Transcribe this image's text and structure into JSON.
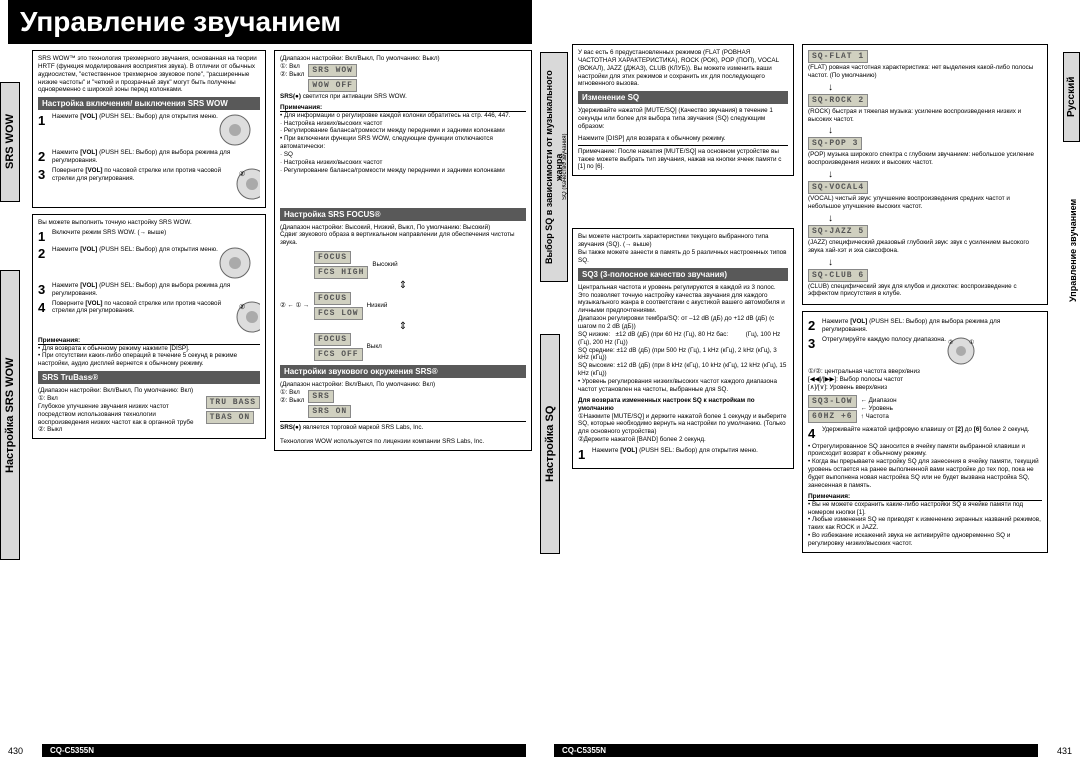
{
  "title": "Управление звучанием",
  "model": "CQ-C5355N",
  "page_left": "430",
  "page_right": "431",
  "lang_tab": "Русский",
  "side_tab_right": "Управление звучанием",
  "left": {
    "vtab1": "SRS WOW",
    "vtab2": "Настройка SRS WOW",
    "intro": "SRS WOW™ это технология трехмерного звучания, основанная на теории HRTF (функция моделирования восприятия звука). В отличии от обычных аудиосистем, \"естественное трехмерное звуковое поле\", \"расширенные низкие частоты\" и \"четкий и прозрачный звук\" могут быть получены одновременно с широкой зоны перед колонками.",
    "hdr1": "Настройка включения/ выключения SRS WOW",
    "s1_1a": "Нажмите ",
    "s1_1b": "[VOL]",
    "s1_1c": " (PUSH SEL",
    "s1_1d": ": Выбор) для открытия меню.",
    "s1_2a": "Нажмите ",
    "s1_2b": "[VOL]",
    "s1_2c": " (PUSH SEL: Выбор) для выбора режима для регулирования.",
    "s1_3a": "Поверните ",
    "s1_3b": "[VOL]",
    "s1_3c": " по часовой стрелке или против часовой стрелки для регулирования.",
    "box2_intro": "Вы можете выполнить точную настройку SRS WOW.",
    "s2_1": "Включите режим SRS WOW. (→ выше)",
    "s2_2a": "Нажмите ",
    "s2_2b": "[VOL]",
    "s2_2c": " (PUSH SEL: Выбор) для открытия меню.",
    "s2_3a": "Нажмите ",
    "s2_3b": "[VOL]",
    "s2_3c": " (PUSH SEL: Выбор) для выбора режима для регулирования.",
    "s2_4a": "Поверните ",
    "s2_4b": "[VOL]",
    "s2_4c": " по часовой стрелке или против часовой стрелки для регулирования.",
    "note_hdr": "Примечания:",
    "note1": "• Для возврата к обычному режиму нажмите [DISP].",
    "note2": "• При отсутствии каких-либо операций в течение 5 секунд в режиме настройки, аудио дисплей вернется к обычному режиму.",
    "hdr_tb": "SRS TruBass®",
    "tb_range": "(Диапазон настройки: Вкл/Выкл, По умолчанию: Вкл)",
    "tb_on": "①: Вкл",
    "tb_on_desc": "Глубокое улучшение звучания низких частот посредством использования технологии воспроизведения низких частот как в органной трубе",
    "tb_off": "②: Выкл",
    "lcd_tb1": "TRU BASS",
    "lcd_tb2": "TBAS  ON",
    "mid_range": "(Диапазон настройки: Вкл/Выкл, По умолчанию: Выкл)",
    "mid_on": "①: Вкл",
    "mid_off": "②: Выкл",
    "lcd_wow1": "SRS WOW",
    "lcd_wow2": "WOW  OFF",
    "mid_note_led": " светится при активации SRS WOW.",
    "mid_notes1": "• Для информации о регулировке каждой колонки обратитесь на стр. 446, 447.",
    "mid_notes2": "  · Настройка низких/высоких частот",
    "mid_notes3": "  · Регулирование баланса/громкости между передними и задними колонками",
    "mid_notes4": "• При включении функции SRS WOW, следующие функции отключаются автоматически:",
    "mid_notes5": "  · SQ",
    "mid_notes6": "  · Настройка низких/высоких частот",
    "mid_notes7": "  · Регулирование баланса/громкости между передними и задними колонками",
    "hdr_focus": "Настройка SRS FOCUS®",
    "focus_range": "(Диапазон настройки: Высокий, Низкий, Выкл, По умолчанию: Высокий)",
    "focus_desc": "Сдвиг звукового образа в вертикальном направлении для обеспечения чистоты звука.",
    "lcd_f1": "FOCUS",
    "lcd_f1b": "FCS HIGH",
    "f1_lbl": "Высокий",
    "lcd_f2": "FOCUS",
    "lcd_f2b": "FCS  LOW",
    "f2_lbl": "Низкий",
    "lcd_f3": "FOCUS",
    "lcd_f3b": "FCS  OFF",
    "f3_lbl": "Выкл",
    "hdr_srs": "Настройки звукового окружения SRS®",
    "srs_range": "(Диапазон настройки: Вкл/Выкл, По умолчанию: Вкл)",
    "srs_on": "①: Вкл",
    "srs_off": "②: Выкл",
    "lcd_s1": "SRS",
    "lcd_s2": "SRS   ON",
    "trademark1": " является торговой маркой SRS Labs, Inc.",
    "trademark2": "Технология WOW используется по лицензии компании SRS Labs, Inc."
  },
  "right": {
    "vtab1": "Выбор SQ в зависимости от музыкального жанра",
    "vtab1_sub": "SQ (Качество звучания)",
    "vtab2": "Настройка SQ",
    "intro": "У вас есть 6 предустановленных режимов (FLAT (РОВНАЯ ЧАСТОТНАЯ ХАРАКТЕРИСТИКА), ROCK (РОК), POP (ПОП), VOCAL (ВОКАЛ), JAZZ (ДЖАЗ), CLUB (КЛУБ)). Вы можете изменить ваши настройки для этих режимов и сохранить их для последующего мгновенного вызова.",
    "hdr1": "Изменение SQ",
    "s1": "Удерживайте нажатой [MUTE/SQ] (Качество звучания) в течение 1 секунды или более для выбора типа звучания (SQ) следующим образом:",
    "s1_disp": "Нажмите [DISP] для возврата к обычному режиму.",
    "s1_note": "Примечание: После нажатия [MUTE/SQ] на основном устройстве вы также можете выбрать тип звучания, нажав на кнопки ячеек памяти с [1] по [6].",
    "sq_presets": [
      {
        "lcd": "SQ-FLAT 1",
        "desc": "(FLAT) ровная частотная характеристика: нет выделения какой-либо полосы частот. (По умолчанию)"
      },
      {
        "lcd": "SQ-ROCK 2",
        "desc": "(ROCK) быстрая и тяжелая музыка: усиление воспроизведения низких и высоких частот."
      },
      {
        "lcd": "SQ-POP  3",
        "desc": "(POP) музыка широкого спектра с глубоким звучанием: небольшое усиление воспроизведения низких и высоких частот."
      },
      {
        "lcd": "SQ-VOCAL4",
        "desc": "(VOCAL) чистый звук: улучшение воспроизведения средних частот и небольшое улучшение высоких частот."
      },
      {
        "lcd": "SQ-JAZZ 5",
        "desc": "(JAZZ) специфический джазовый глубокий звук: звук с усилением высокого звука хай-хэт и эха саксофона."
      },
      {
        "lcd": "SQ-CLUB 6",
        "desc": "(CLUB) специфический звук для клубов и дискотек: воспроизведение с эффектом присутствия в клубе."
      }
    ],
    "box2_intro1": "Вы можете настроить характеристики текущего выбранного типа звучания (SQ). (→ выше)",
    "box2_intro2": "Вы также можете занести в память до 5 различных настроенных типов SQ.",
    "hdr_sq3": "SQ3 (3-полосное качество звучания)",
    "sq3_desc": "Центральная частота и уровень регулируются в каждой из 3 полос. Это позволяет точную настройку качества звучания для каждого музыкального жанра в соответствии с акустикой вашего автомобиля и личными предпочтениями.",
    "sq3_range": "Диапазон регулировки тембра/SQ: от –12 dB (дБ) до +12 dB (дБ) (с шагом по 2 dB (дБ))",
    "sq_low": "SQ низкие:   ±12 dB (дБ) (при 60 Hz (Гц), 80 Hz бас:          (Гц), 100 Hz (Гц), 200 Hz (Гц))",
    "sq_mid": "SQ средние: ±12 dB (дБ) (при 500 Hz (Гц), 1 kHz (кГц), 2 kHz (кГц), 3 kHz (кГц))",
    "sq_high": "SQ высокие: ±12 dB (дБ) (при 8 kHz (кГц), 10 kHz (кГц), 12 kHz (кГц), 15 kHz (кГц))",
    "sq3_note": "• Уровень регулирования низких/высоких частот каждого диапазона частот установлен на частоты, выбранные для SQ.",
    "restore_hdr": "Для возврата измененных настроек SQ к настройкам по умолчанию",
    "restore1": "①Нажмите [MUTE/SQ] и держите нажатой более 1 секунду и выберите SQ, которые необходимо вернуть на настройки по умолчанию. (Только для основного устройства)",
    "restore2": "②Держите нажатой [BAND] более 2 секунд.",
    "step1a": "Нажмите ",
    "step1b": "[VOL]",
    "step1c": " (PUSH SEL: Выбор) для открытия меню.",
    "step2a": "Нажмите ",
    "step2b": "[VOL]",
    "step2c": " (PUSH SEL: Выбор) для выбора режима для регулирования.",
    "step3": "Отрегулируйте каждую полосу диапазона.",
    "step3_sub1": "①/②: центральная частота вверх/вниз",
    "step3_sub2": "[◀◀]/[▶▶]: Выбор полосы частот",
    "step3_sub3": "[∧]/[∨]: Уровень вверх/вниз",
    "lcd_sq3a": "SQ3-LOW",
    "lcd_sq3b": "60HZ +6",
    "lcd_lbl1": "Диапазон",
    "lcd_lbl2": "Уровень",
    "lcd_lbl3": "Частота",
    "step4a": "Удерживайте нажатой цифровую клавишу от ",
    "step4b": "[2]",
    "step4c": " до ",
    "step4d": "[6]",
    "step4e": " более 2 секунд.",
    "step4_n1": "• Отрегулированное SQ заносится в ячейку памяти выбранной клавиши и происходит возврат к обычному режиму.",
    "step4_n2": "• Когда вы прерываете настройку SQ для занесения в ячейку памяти, текущий уровень остается на ранее выполненной вами настройке до тех пор, пока не будет выполнена новая настройка SQ или не будет вызвана настройка SQ, занесенная в память.",
    "notes_hdr": "Примечания:",
    "note1": "• Вы не можете сохранить какие-либо настройки SQ в ячейке памяти под номером кнопки [1].",
    "note2": "• Любые изменения SQ не приводят к изменению экранных названий режимов, таких как ROCK и JAZZ.",
    "note3": "• Во избежание искажений звука не активируйте одновременно SQ и регулировку низких/высоких частот."
  }
}
